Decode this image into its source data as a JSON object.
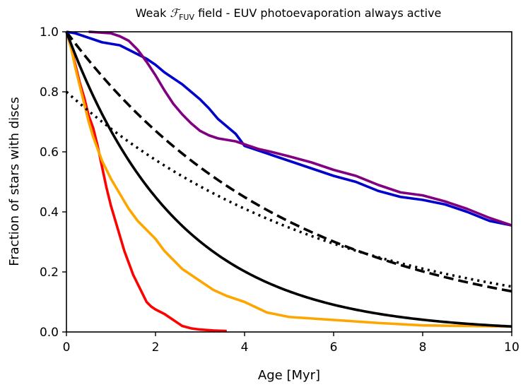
{
  "chart_data": {
    "type": "line",
    "title": {
      "prefix": "Weak ",
      "symbol": "ℱ",
      "subscript": "FUV",
      "suffix": " field - EUV photoevaporation always active"
    },
    "xlabel": "Age [Myr]",
    "ylabel": "Fraction of stars with discs",
    "xlim": [
      0,
      10
    ],
    "ylim": [
      0,
      1
    ],
    "xticks": [
      0,
      2,
      4,
      6,
      8,
      10
    ],
    "xtick_labels": [
      "0",
      "2",
      "4",
      "6",
      "8",
      "10"
    ],
    "yticks": [
      0,
      0.2,
      0.4,
      0.6,
      0.8,
      1.0
    ],
    "ytick_labels": [
      "0.0",
      "0.2",
      "0.4",
      "0.6",
      "0.8",
      "1.0"
    ],
    "grid": false,
    "series": [
      {
        "name": "red-simulation",
        "color": "#ff0000",
        "style": "solid",
        "x": [
          0,
          0.1,
          0.2,
          0.3,
          0.4,
          0.5,
          0.6,
          0.7,
          0.8,
          0.9,
          1.0,
          1.1,
          1.2,
          1.3,
          1.4,
          1.5,
          1.6,
          1.7,
          1.8,
          1.9,
          2.0,
          2.2,
          2.4,
          2.6,
          2.8,
          3.0,
          3.3,
          3.6
        ],
        "y": [
          1.0,
          0.95,
          0.89,
          0.83,
          0.78,
          0.72,
          0.68,
          0.62,
          0.55,
          0.48,
          0.42,
          0.37,
          0.32,
          0.27,
          0.23,
          0.19,
          0.16,
          0.13,
          0.1,
          0.085,
          0.075,
          0.06,
          0.04,
          0.02,
          0.012,
          0.008,
          0.005,
          0.003
        ]
      },
      {
        "name": "orange-simulation",
        "color": "#ffa500",
        "style": "solid",
        "x": [
          0,
          0.1,
          0.2,
          0.3,
          0.4,
          0.5,
          0.6,
          0.7,
          0.8,
          0.9,
          1.0,
          1.2,
          1.4,
          1.6,
          1.8,
          2.0,
          2.2,
          2.4,
          2.6,
          2.8,
          3.0,
          3.3,
          3.6,
          4.0,
          4.5,
          5.0,
          6.0,
          7.0,
          8.0,
          9.0,
          10.0
        ],
        "y": [
          1.0,
          0.95,
          0.88,
          0.82,
          0.76,
          0.7,
          0.65,
          0.61,
          0.57,
          0.54,
          0.51,
          0.46,
          0.41,
          0.37,
          0.34,
          0.31,
          0.27,
          0.24,
          0.21,
          0.19,
          0.17,
          0.14,
          0.12,
          0.1,
          0.065,
          0.05,
          0.04,
          0.03,
          0.022,
          0.02,
          0.018
        ]
      },
      {
        "name": "exponential-solid",
        "color": "#000000",
        "style": "solid",
        "func": "exp",
        "a": 1.0,
        "tau": 2.5
      },
      {
        "name": "exponential-dotted",
        "color": "#000000",
        "style": "dotted",
        "func": "exp",
        "a": 0.8,
        "tau": 6.0
      },
      {
        "name": "exponential-dashed",
        "color": "#000000",
        "style": "dashed",
        "func": "exp",
        "a": 1.0,
        "tau": 5.0
      },
      {
        "name": "blue-simulation",
        "color": "#0000cc",
        "style": "solid",
        "x": [
          0,
          0.2,
          0.4,
          0.6,
          0.8,
          1.0,
          1.2,
          1.4,
          1.6,
          1.8,
          2.0,
          2.2,
          2.4,
          2.6,
          2.8,
          3.0,
          3.2,
          3.4,
          3.6,
          3.8,
          4.0,
          4.3,
          4.6,
          5.0,
          5.5,
          6.0,
          6.5,
          7.0,
          7.5,
          8.0,
          8.5,
          9.0,
          9.5,
          10.0
        ],
        "y": [
          1.0,
          0.995,
          0.985,
          0.975,
          0.965,
          0.96,
          0.955,
          0.94,
          0.925,
          0.91,
          0.89,
          0.865,
          0.845,
          0.825,
          0.8,
          0.775,
          0.745,
          0.71,
          0.685,
          0.66,
          0.62,
          0.605,
          0.59,
          0.57,
          0.545,
          0.52,
          0.5,
          0.47,
          0.45,
          0.44,
          0.425,
          0.4,
          0.37,
          0.355
        ]
      },
      {
        "name": "purple-simulation",
        "color": "#800080",
        "style": "solid",
        "x": [
          0.5,
          1.0,
          1.2,
          1.4,
          1.6,
          1.8,
          2.0,
          2.2,
          2.4,
          2.6,
          2.8,
          3.0,
          3.2,
          3.4,
          3.6,
          3.8,
          4.0,
          4.3,
          4.6,
          5.0,
          5.5,
          6.0,
          6.5,
          7.0,
          7.5,
          8.0,
          8.5,
          9.0,
          9.5,
          10.0
        ],
        "y": [
          1.0,
          0.995,
          0.985,
          0.97,
          0.94,
          0.9,
          0.855,
          0.805,
          0.76,
          0.725,
          0.695,
          0.67,
          0.655,
          0.645,
          0.64,
          0.635,
          0.625,
          0.61,
          0.6,
          0.585,
          0.565,
          0.54,
          0.52,
          0.49,
          0.465,
          0.455,
          0.435,
          0.41,
          0.38,
          0.355
        ]
      }
    ]
  }
}
